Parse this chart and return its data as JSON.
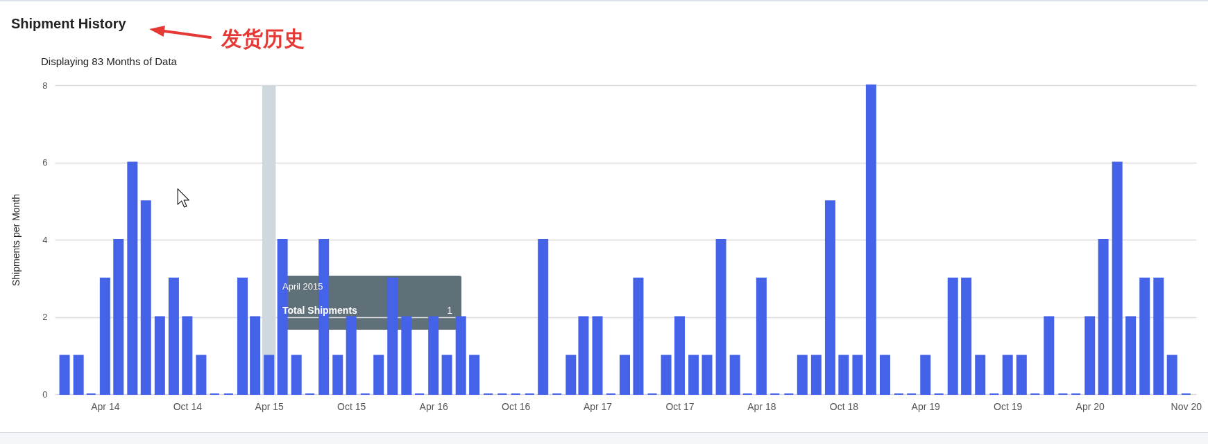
{
  "chart_data": {
    "type": "bar",
    "title": "Shipment History",
    "subtitle": "Displaying 83 Months of Data",
    "ylabel": "Shipments per Month",
    "x": [
      "2014-01",
      "2014-02",
      "2014-03",
      "2014-04",
      "2014-05",
      "2014-06",
      "2014-07",
      "2014-08",
      "2014-09",
      "2014-10",
      "2014-11",
      "2014-12",
      "2015-01",
      "2015-02",
      "2015-03",
      "2015-04",
      "2015-05",
      "2015-06",
      "2015-07",
      "2015-08",
      "2015-09",
      "2015-10",
      "2015-11",
      "2015-12",
      "2016-01",
      "2016-02",
      "2016-03",
      "2016-04",
      "2016-05",
      "2016-06",
      "2016-07",
      "2016-08",
      "2016-09",
      "2016-10",
      "2016-11",
      "2016-12",
      "2017-01",
      "2017-02",
      "2017-03",
      "2017-04",
      "2017-05",
      "2017-06",
      "2017-07",
      "2017-08",
      "2017-09",
      "2017-10",
      "2017-11",
      "2017-12",
      "2018-01",
      "2018-02",
      "2018-03",
      "2018-04",
      "2018-05",
      "2018-06",
      "2018-07",
      "2018-08",
      "2018-09",
      "2018-10",
      "2018-11",
      "2018-12",
      "2019-01",
      "2019-02",
      "2019-03",
      "2019-04",
      "2019-05",
      "2019-06",
      "2019-07",
      "2019-08",
      "2019-09",
      "2019-10",
      "2019-11",
      "2019-12",
      "2020-01",
      "2020-02",
      "2020-03",
      "2020-04",
      "2020-05",
      "2020-06",
      "2020-07",
      "2020-08",
      "2020-09",
      "2020-10",
      "2020-11"
    ],
    "values": [
      1,
      1,
      0,
      3,
      4,
      6,
      5,
      2,
      3,
      2,
      1,
      0,
      0,
      3,
      2,
      1,
      4,
      1,
      0,
      4,
      1,
      2,
      0,
      1,
      3,
      2,
      0,
      2,
      1,
      2,
      1,
      0,
      0,
      0,
      0,
      4,
      0,
      1,
      2,
      2,
      0,
      1,
      3,
      0,
      1,
      2,
      1,
      1,
      4,
      1,
      0,
      3,
      0,
      0,
      1,
      1,
      5,
      1,
      1,
      8,
      1,
      0,
      0,
      1,
      0,
      3,
      3,
      1,
      0,
      1,
      1,
      0,
      2,
      0,
      0,
      2,
      4,
      6,
      2,
      3,
      3,
      1,
      0
    ],
    "color": "#4563e8",
    "xlim": [
      "2013-12-18",
      "2020-11-16"
    ],
    "xticks": [
      {
        "value": "2014-04",
        "label": "Apr 14"
      },
      {
        "value": "2014-10",
        "label": "Oct 14"
      },
      {
        "value": "2015-04",
        "label": "Apr 15"
      },
      {
        "value": "2015-10",
        "label": "Oct 15"
      },
      {
        "value": "2016-04",
        "label": "Apr 16"
      },
      {
        "value": "2016-10",
        "label": "Oct 16"
      },
      {
        "value": "2017-04",
        "label": "Apr 17"
      },
      {
        "value": "2017-10",
        "label": "Oct 17"
      },
      {
        "value": "2018-04",
        "label": "Apr 18"
      },
      {
        "value": "2018-10",
        "label": "Oct 18"
      },
      {
        "value": "2019-04",
        "label": "Apr 19"
      },
      {
        "value": "2019-10",
        "label": "Oct 19"
      },
      {
        "value": "2020-04",
        "label": "Apr 20"
      },
      {
        "value": "2020-11",
        "label": "Nov 20"
      }
    ],
    "ylim": [
      0,
      8
    ],
    "yticks": [
      0,
      2,
      4,
      6,
      8
    ],
    "grid": "y",
    "bands": [
      {
        "axis": "x",
        "from": "2015-03-17",
        "to": "2015-04-16",
        "color": "#cfd8dc"
      }
    ],
    "annotations": [
      "发货历史",
      "April 2015",
      "Total Shipments",
      "1"
    ]
  }
}
